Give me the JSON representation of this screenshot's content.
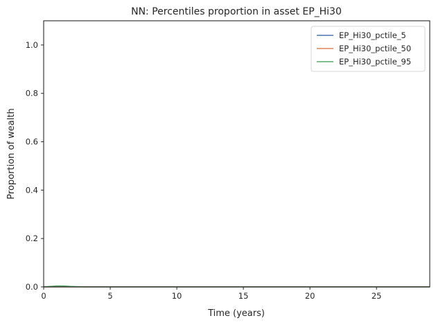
{
  "chart_data": {
    "type": "line",
    "title": "NN: Percentiles proportion in asset EP_Hi30",
    "xlabel": "Time (years)",
    "ylabel": "Proportion of wealth",
    "xlim": [
      0,
      29
    ],
    "ylim": [
      0,
      1.1
    ],
    "xticks": [
      0,
      5,
      10,
      15,
      20,
      25
    ],
    "yticks": [
      0.0,
      0.2,
      0.4,
      0.6,
      0.8,
      1.0
    ],
    "xtick_labels": [
      "0",
      "5",
      "10",
      "15",
      "20",
      "25"
    ],
    "ytick_labels": [
      "0.0",
      "0.2",
      "0.4",
      "0.6",
      "0.8",
      "1.0"
    ],
    "grid": false,
    "legend_position": "top-right",
    "x": [
      0,
      0.5,
      1,
      1.5,
      2,
      2.5,
      3,
      4,
      5,
      6,
      8,
      10,
      12,
      14,
      16,
      18,
      20,
      22,
      24,
      26,
      28,
      29
    ],
    "series": [
      {
        "name": "EP_Hi30_pctile_5",
        "color": "#4c72b0",
        "values": [
          0,
          0,
          0,
          0,
          0,
          0,
          0,
          0,
          0,
          0,
          0,
          0,
          0,
          0,
          0,
          0,
          0,
          0,
          0,
          0,
          0,
          0
        ]
      },
      {
        "name": "EP_Hi30_pctile_50",
        "color": "#dd8452",
        "values": [
          0,
          0,
          0,
          0,
          0,
          0,
          0,
          0,
          0,
          0,
          0,
          0,
          0,
          0,
          0,
          0,
          0,
          0,
          0,
          0,
          0,
          0
        ]
      },
      {
        "name": "EP_Hi30_pctile_95",
        "color": "#55a868",
        "values": [
          0,
          0.002,
          0.004,
          0.004,
          0.002,
          0.001,
          0,
          0,
          0,
          0,
          0,
          0,
          0,
          0,
          0,
          0,
          0,
          0,
          0,
          0,
          0,
          0
        ]
      }
    ]
  }
}
